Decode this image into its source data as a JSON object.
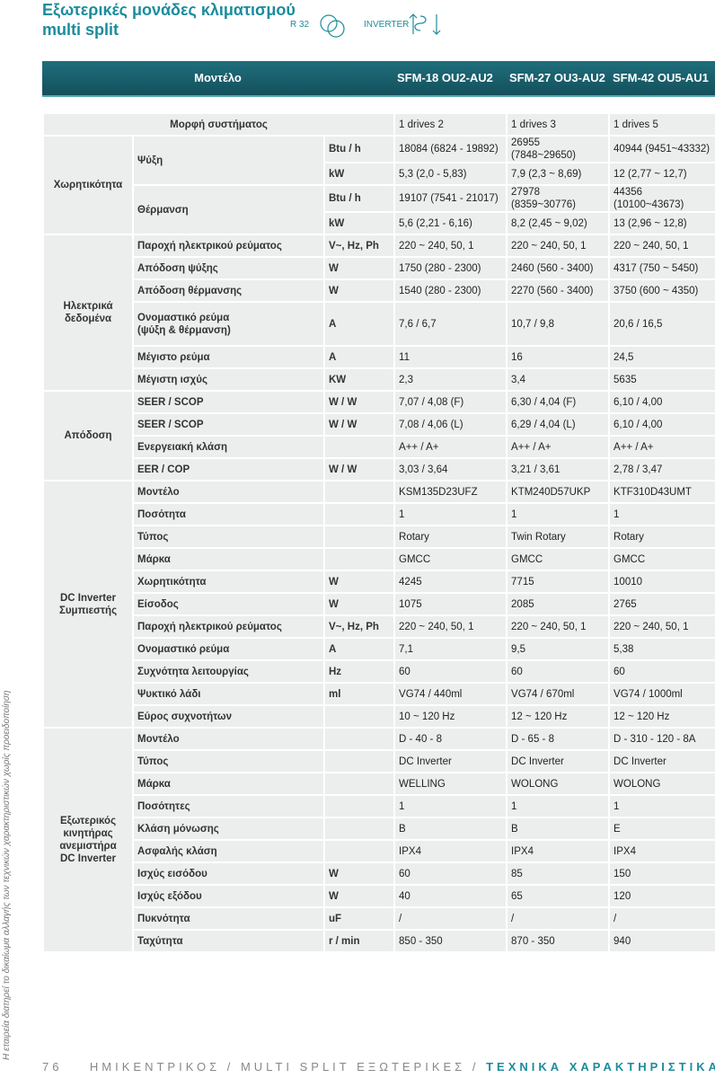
{
  "header": {
    "title": "Εξωτερικές μονάδες κλιματισμού\nmulti split",
    "refrigerant": "R 32",
    "technology": "INVERTER"
  },
  "side_note": "Η εταιρεία διατηρεί το δικαίωμα αλλαγής των τεχνικών χαρακτηριστικών χωρίς προειδοποίηση",
  "table": {
    "header": [
      "Μοντέλο",
      "SFM-18 OU2-AU2",
      "SFM-27 OU3-AU2",
      "SFM-42 OU5-AU1"
    ],
    "system": {
      "param": "Μορφή συστήματος",
      "values": [
        "1 drives 2",
        "1 drives 3",
        "1 drives 5"
      ]
    },
    "groups": [
      {
        "label": "Χωρητικότητα",
        "rows": [
          {
            "param": "Ψύξη",
            "lines": [
              {
                "unit": "Btu / h",
                "values": [
                  "18084 (6824 - 19892)",
                  "26955 (7848~29650)",
                  "40944 (9451~43332)"
                ]
              },
              {
                "unit": "kW",
                "values": [
                  "5,3 (2,0 - 5,83)",
                  "7,9 (2,3 ~ 8,69)",
                  "12 (2,77 ~ 12,7)"
                ]
              }
            ]
          },
          {
            "param": "Θέρμανση",
            "lines": [
              {
                "unit": "Btu / h",
                "values": [
                  "19107 (7541 - 21017)",
                  "27978 (8359~30776)",
                  "44356 (10100~43673)"
                ]
              },
              {
                "unit": "kW",
                "values": [
                  "5,6 (2,21 - 6,16)",
                  "8,2 (2,45 ~ 9,02)",
                  "13 (2,96 ~ 12,8)"
                ]
              }
            ]
          }
        ]
      },
      {
        "label": "Ηλεκτρικά\nδεδομένα",
        "rows": [
          {
            "param": "Παροχή ηλεκτρικού ρεύματος",
            "unit": "V~, Hz, Ph",
            "values": [
              "220 ~ 240, 50, 1",
              "220 ~ 240, 50, 1",
              "220 ~ 240, 50, 1"
            ]
          },
          {
            "param": "Απόδοση ψύξης",
            "unit": "W",
            "values": [
              "1750 (280 - 2300)",
              "2460 (560 - 3400)",
              "4317 (750 ~ 5450)"
            ]
          },
          {
            "param": "Απόδοση θέρμανσης",
            "unit": "W",
            "values": [
              "1540 (280 - 2300)",
              "2270 (560 - 3400)",
              "3750 (600 ~ 4350)"
            ]
          },
          {
            "param": "Ονομαστικό ρεύμα\n(ψύξη & θέρμανση)",
            "unit": "A",
            "values": [
              "7,6 / 6,7",
              "10,7 / 9,8",
              "20,6 / 16,5"
            ]
          },
          {
            "param": "Μέγιστο ρεύμα",
            "unit": "A",
            "values": [
              "11",
              "16",
              "24,5"
            ]
          },
          {
            "param": "Μέγιστη ισχύς",
            "unit": "KW",
            "values": [
              "2,3",
              "3,4",
              "5635"
            ]
          }
        ]
      },
      {
        "label": "Απόδοση",
        "rows": [
          {
            "param": "SEER / SCOP",
            "unit": "W / W",
            "values": [
              "7,07 / 4,08 (F)",
              "6,30 / 4,04 (F)",
              "6,10 / 4,00"
            ]
          },
          {
            "param": "SEER / SCOP",
            "unit": "W / W",
            "values": [
              "7,08 / 4,06 (L)",
              "6,29 / 4,04 (L)",
              "6,10 / 4,00"
            ]
          },
          {
            "param": "Ενεργειακή κλάση",
            "values": [
              "A++ / A+",
              "A++ / A+",
              "A++ / A+"
            ]
          },
          {
            "param": "EER / COP",
            "unit": "W / W",
            "values": [
              "3,03 / 3,64",
              "3,21 / 3,61",
              "2,78 / 3,47"
            ]
          }
        ]
      },
      {
        "label": "DC Inverter\nΣυμπιεστής",
        "rows": [
          {
            "param": "Μοντέλο",
            "values": [
              "KSM135D23UFZ",
              "KTM240D57UKP",
              "KTF310D43UMT"
            ]
          },
          {
            "param": "Ποσότητα",
            "values": [
              "1",
              "1",
              "1"
            ]
          },
          {
            "param": "Τύπος",
            "values": [
              "Rotary",
              "Twin Rotary",
              "Rotary"
            ]
          },
          {
            "param": "Μάρκα",
            "values": [
              "GMCC",
              "GMCC",
              "GMCC"
            ]
          },
          {
            "param": "Χωρητικότητα",
            "unit": "W",
            "values": [
              "4245",
              "7715",
              "10010"
            ]
          },
          {
            "param": "Είσοδος",
            "unit": "W",
            "values": [
              "1075",
              "2085",
              "2765"
            ]
          },
          {
            "param": "Παροχή ηλεκτρικού ρεύματος",
            "unit": "V~, Hz, Ph",
            "values": [
              "220 ~ 240, 50, 1",
              "220 ~ 240, 50, 1",
              "220 ~ 240, 50, 1"
            ]
          },
          {
            "param": "Ονομαστικό ρεύμα",
            "unit": "A",
            "values": [
              "7,1",
              "9,5",
              "5,38"
            ]
          },
          {
            "param": "Συχνότητα λειτουργίας",
            "unit": "Hz",
            "values": [
              "60",
              "60",
              "60"
            ]
          },
          {
            "param": "Ψυκτικό λάδι",
            "unit": "ml",
            "values": [
              "VG74 / 440ml",
              "VG74 / 670ml",
              "VG74 / 1000ml"
            ]
          },
          {
            "param": "Εύρος συχνοτήτων",
            "values": [
              "10 ~ 120 Hz",
              "12 ~ 120 Hz",
              "12 ~ 120 Hz"
            ]
          }
        ]
      },
      {
        "label": "Εξωτερικός\nκινητήρας\nανεμιστήρα\nDC Inverter",
        "rows": [
          {
            "param": "Μοντέλο",
            "values": [
              "D - 40 - 8",
              "D - 65 - 8",
              "D - 310 - 120 - 8A"
            ]
          },
          {
            "param": "Τύπος",
            "values": [
              "DC Inverter",
              "DC Inverter",
              "DC Inverter"
            ]
          },
          {
            "param": "Μάρκα",
            "values": [
              "WELLING",
              "WOLONG",
              "WOLONG"
            ]
          },
          {
            "param": "Ποσότητες",
            "values": [
              "1",
              "1",
              "1"
            ]
          },
          {
            "param": "Κλάση μόνωσης",
            "values": [
              "B",
              "B",
              "E"
            ]
          },
          {
            "param": "Ασφαλής κλάση",
            "values": [
              "IPX4",
              "IPX4",
              "IPX4"
            ]
          },
          {
            "param": "Ισχύς εισόδου",
            "unit": "W",
            "values": [
              "60",
              "85",
              "150"
            ]
          },
          {
            "param": "Ισχύς εξόδου",
            "unit": "W",
            "values": [
              "40",
              "65",
              "120"
            ]
          },
          {
            "param": "Πυκνότητα",
            "unit": "uF",
            "values": [
              "/",
              "/",
              "/"
            ]
          },
          {
            "param": "Ταχύτητα",
            "unit": "r / min",
            "values": [
              "850 - 350",
              "870 - 350",
              "940"
            ]
          }
        ]
      }
    ]
  },
  "footer": {
    "page": "76",
    "section": "ΗΜΙΚΕΝΤΡΙΚΟΣ / MULTI SPLIT ΕΞΩΤΕΡΙΚΕΣ /",
    "chapter": "ΤΕΧΝΙΚΑ ΧΑΡΑΚΤΗΡΙΣΤΙΚΑ"
  }
}
